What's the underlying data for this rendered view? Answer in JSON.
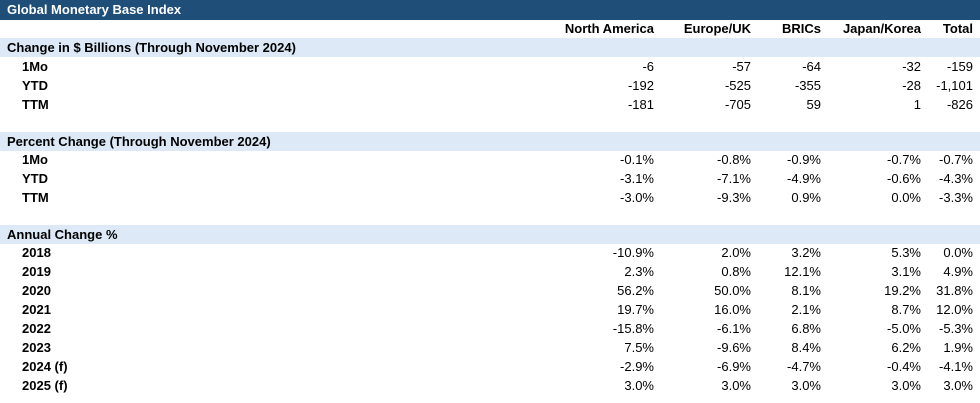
{
  "title": "Global Monetary Base Index",
  "columns": [
    "North America",
    "Europe/UK",
    "BRICs",
    "Japan/Korea",
    "Total"
  ],
  "sections": [
    {
      "label": "Change in $ Billions (Through November 2024)",
      "rows": [
        {
          "label": "1Mo",
          "values": [
            "-6",
            "-57",
            "-64",
            "-32",
            "-159"
          ]
        },
        {
          "label": "YTD",
          "values": [
            "-192",
            "-525",
            "-355",
            "-28",
            "-1,101"
          ]
        },
        {
          "label": "TTM",
          "values": [
            "-181",
            "-705",
            "59",
            "1",
            "-826"
          ]
        }
      ]
    },
    {
      "label": "Percent Change (Through November 2024)",
      "rows": [
        {
          "label": "1Mo",
          "values": [
            "-0.1%",
            "-0.8%",
            "-0.9%",
            "-0.7%",
            "-0.7%"
          ]
        },
        {
          "label": "YTD",
          "values": [
            "-3.1%",
            "-7.1%",
            "-4.9%",
            "-0.6%",
            "-4.3%"
          ]
        },
        {
          "label": "TTM",
          "values": [
            "-3.0%",
            "-9.3%",
            "0.9%",
            "0.0%",
            "-3.3%"
          ]
        }
      ]
    },
    {
      "label": "Annual Change %",
      "rows": [
        {
          "label": "2018",
          "values": [
            "-10.9%",
            "2.0%",
            "3.2%",
            "5.3%",
            "0.0%"
          ]
        },
        {
          "label": "2019",
          "values": [
            "2.3%",
            "0.8%",
            "12.1%",
            "3.1%",
            "4.9%"
          ]
        },
        {
          "label": "2020",
          "values": [
            "56.2%",
            "50.0%",
            "8.1%",
            "19.2%",
            "31.8%"
          ]
        },
        {
          "label": "2021",
          "values": [
            "19.7%",
            "16.0%",
            "2.1%",
            "8.7%",
            "12.0%"
          ]
        },
        {
          "label": "2022",
          "values": [
            "-15.8%",
            "-6.1%",
            "6.8%",
            "-5.0%",
            "-5.3%"
          ]
        },
        {
          "label": "2023",
          "values": [
            "7.5%",
            "-9.6%",
            "8.4%",
            "6.2%",
            "1.9%"
          ]
        },
        {
          "label": "2024 (f)",
          "values": [
            "-2.9%",
            "-6.9%",
            "-4.7%",
            "-0.4%",
            "-4.1%"
          ]
        },
        {
          "label": "2025 (f)",
          "values": [
            "3.0%",
            "3.0%",
            "3.0%",
            "3.0%",
            "3.0%"
          ]
        }
      ]
    }
  ]
}
